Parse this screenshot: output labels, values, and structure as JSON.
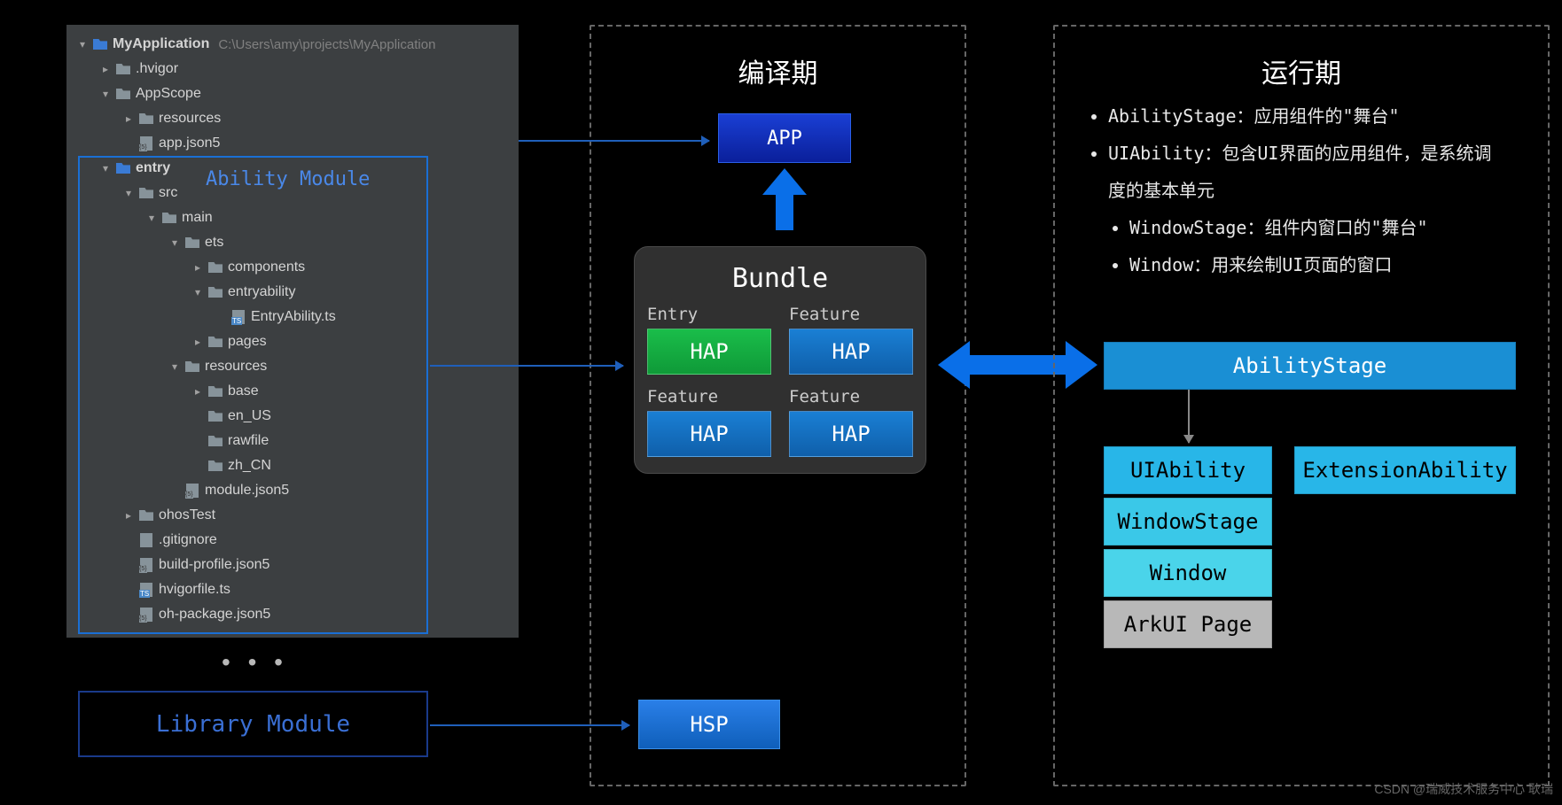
{
  "tree": {
    "root": {
      "name": "MyApplication",
      "path": "C:\\Users\\amy\\projects\\MyApplication"
    },
    "items": [
      {
        "d": 0,
        "ar": "v",
        "ic": "folder-blue",
        "t": "MyApplication",
        "path": true
      },
      {
        "d": 1,
        "ar": ">",
        "ic": "folder",
        "t": ".hvigor"
      },
      {
        "d": 1,
        "ar": "v",
        "ic": "folder",
        "t": "AppScope"
      },
      {
        "d": 2,
        "ar": ">",
        "ic": "folder",
        "t": "resources"
      },
      {
        "d": 2,
        "ar": "",
        "ic": "j5",
        "t": "app.json5"
      },
      {
        "d": 1,
        "ar": "v",
        "ic": "folder-blue",
        "t": "entry",
        "bold": true
      },
      {
        "d": 2,
        "ar": "v",
        "ic": "folder",
        "t": "src"
      },
      {
        "d": 3,
        "ar": "v",
        "ic": "folder",
        "t": "main"
      },
      {
        "d": 4,
        "ar": "v",
        "ic": "folder",
        "t": "ets"
      },
      {
        "d": 5,
        "ar": ">",
        "ic": "folder",
        "t": "components"
      },
      {
        "d": 5,
        "ar": "v",
        "ic": "folder",
        "t": "entryability"
      },
      {
        "d": 6,
        "ar": "",
        "ic": "ts",
        "t": "EntryAbility.ts"
      },
      {
        "d": 5,
        "ar": ">",
        "ic": "folder",
        "t": "pages"
      },
      {
        "d": 4,
        "ar": "v",
        "ic": "folder",
        "t": "resources"
      },
      {
        "d": 5,
        "ar": ">",
        "ic": "folder",
        "t": "base"
      },
      {
        "d": 5,
        "ar": "",
        "ic": "folder",
        "t": "en_US"
      },
      {
        "d": 5,
        "ar": "",
        "ic": "folder",
        "t": "rawfile"
      },
      {
        "d": 5,
        "ar": "",
        "ic": "folder",
        "t": "zh_CN"
      },
      {
        "d": 4,
        "ar": "",
        "ic": "j5",
        "t": "module.json5"
      },
      {
        "d": 2,
        "ar": ">",
        "ic": "folder",
        "t": "ohosTest"
      },
      {
        "d": 2,
        "ar": "",
        "ic": "file",
        "t": ".gitignore"
      },
      {
        "d": 2,
        "ar": "",
        "ic": "j5",
        "t": "build-profile.json5"
      },
      {
        "d": 2,
        "ar": "",
        "ic": "ts",
        "t": "hvigorfile.ts"
      },
      {
        "d": 2,
        "ar": "",
        "ic": "j5",
        "t": "oh-package.json5"
      }
    ]
  },
  "ability_module_label": "Ability  Module",
  "library_module_label": "Library  Module",
  "compile": {
    "title": "编译期",
    "app": "APP",
    "bundle": "Bundle",
    "haps": [
      {
        "cap": "Entry",
        "txt": "HAP",
        "cls": "hap-green"
      },
      {
        "cap": "Feature",
        "txt": "HAP",
        "cls": "hap-blue"
      },
      {
        "cap": "Feature",
        "txt": "HAP",
        "cls": "hap-blue"
      },
      {
        "cap": "Feature",
        "txt": "HAP",
        "cls": "hap-blue"
      }
    ],
    "hsp": "HSP"
  },
  "runtime": {
    "title": "运行期",
    "bullets": [
      {
        "t": "AbilityStage：应用组件的\"舞台\"",
        "sub": false
      },
      {
        "t": "UIAbility：包含UI界面的应用组件，是系统调度的基本单元",
        "sub": false
      },
      {
        "t": "WindowStage：组件内窗口的\"舞台\"",
        "sub": true
      },
      {
        "t": "Window：用来绘制UI页面的窗口",
        "sub": true
      }
    ],
    "ability_stage": "AbilityStage",
    "stack": [
      {
        "t": "UIAbility",
        "cls": "c2"
      },
      {
        "t": "WindowStage",
        "cls": "c3"
      },
      {
        "t": "Window",
        "cls": "c4"
      },
      {
        "t": "ArkUI Page",
        "cls": "c5"
      }
    ],
    "ext": "ExtensionAbility"
  },
  "colors": {
    "bg": "#000000",
    "panel": "#3c3f41",
    "blue": "#1a6fd4",
    "green": "#1abd4a",
    "cyan1": "#1a8fd4",
    "cyan2": "#28b6e8",
    "cyan3": "#3ac8e8",
    "cyan4": "#4ad4ea",
    "gray": "#b8b8b8"
  },
  "watermark": "CSDN @瑞威技术服务中心 耿瑞"
}
